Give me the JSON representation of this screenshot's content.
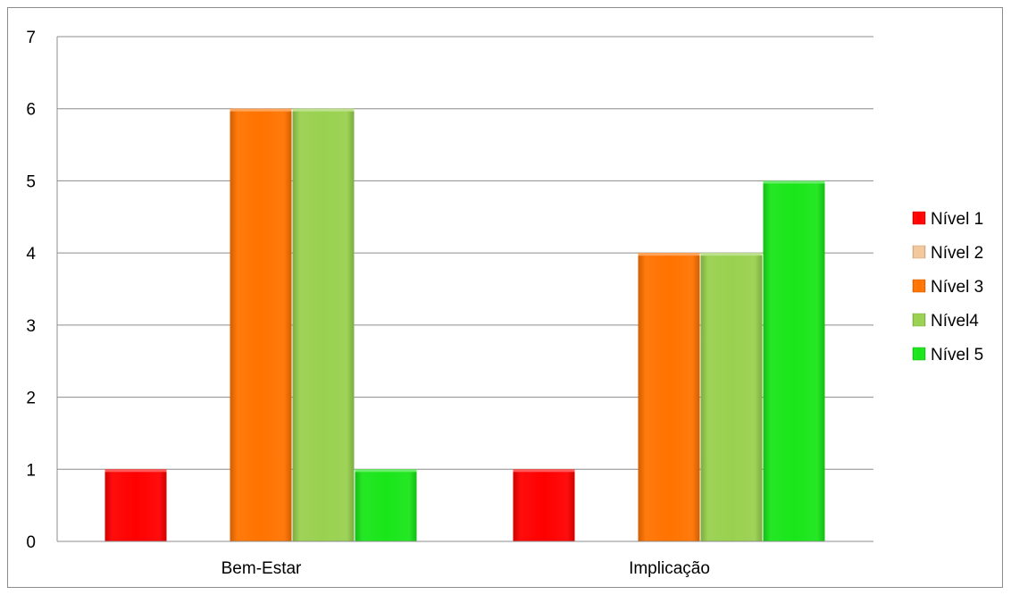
{
  "chart_data": {
    "type": "bar",
    "categories": [
      "Bem-Estar",
      "Implicação"
    ],
    "series": [
      {
        "name": "Nível 1",
        "values": [
          1,
          1
        ],
        "color": "#ff0000"
      },
      {
        "name": "Nível 2",
        "values": [
          0,
          0
        ],
        "color": "#f2c79b"
      },
      {
        "name": "Nível 3",
        "values": [
          6,
          4
        ],
        "color": "#ff7300"
      },
      {
        "name": "Nível4",
        "values": [
          6,
          4
        ],
        "color": "#99d14f"
      },
      {
        "name": "Nível 5",
        "values": [
          1,
          5
        ],
        "color": "#19e619"
      }
    ],
    "title": "",
    "xlabel": "",
    "ylabel": "",
    "ylim": [
      0,
      7
    ],
    "yticks": [
      "0",
      "1",
      "2",
      "3",
      "4",
      "5",
      "6",
      "7"
    ],
    "grid": true,
    "legend_position": "right"
  }
}
